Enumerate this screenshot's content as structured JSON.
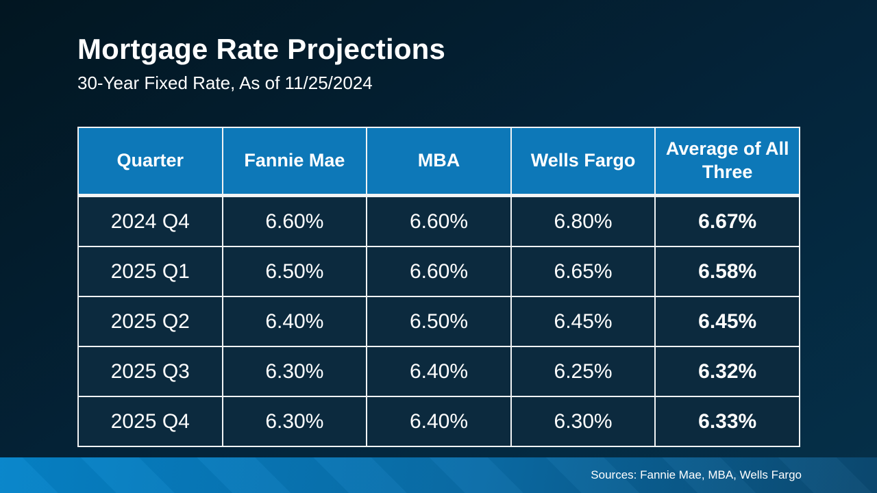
{
  "slide": {
    "title": "Mortgage Rate Projections",
    "subtitle": "30-Year Fixed Rate, As of 11/25/2024",
    "sources": "Sources: Fannie Mae, MBA, Wells Fargo"
  },
  "colors": {
    "text": "#ffffff",
    "bg_top": "#021621",
    "bg_bottom": "#053049",
    "header_bg": "#0d78b8",
    "cell_bg": "#0c2a3e",
    "border": "#f2f4f5",
    "bar_left": "#0584ca",
    "bar_right": "#0b4a72"
  },
  "chart_data": {
    "type": "table",
    "title": "Mortgage Rate Projections",
    "subtitle": "30-Year Fixed Rate, As of 11/25/2024",
    "columns": [
      "Quarter",
      "Fannie Mae",
      "MBA",
      "Wells Fargo",
      "Average of All Three"
    ],
    "rows": [
      [
        "2024 Q4",
        "6.60%",
        "6.60%",
        "6.80%",
        "6.67%"
      ],
      [
        "2025 Q1",
        "6.50%",
        "6.60%",
        "6.65%",
        "6.58%"
      ],
      [
        "2025 Q2",
        "6.40%",
        "6.50%",
        "6.45%",
        "6.45%"
      ],
      [
        "2025 Q3",
        "6.30%",
        "6.40%",
        "6.25%",
        "6.32%"
      ],
      [
        "2025 Q4",
        "6.30%",
        "6.40%",
        "6.30%",
        "6.33%"
      ]
    ],
    "notes": "Average-of-all-three column rendered bold",
    "footer": "Sources: Fannie Mae, MBA, Wells Fargo"
  }
}
